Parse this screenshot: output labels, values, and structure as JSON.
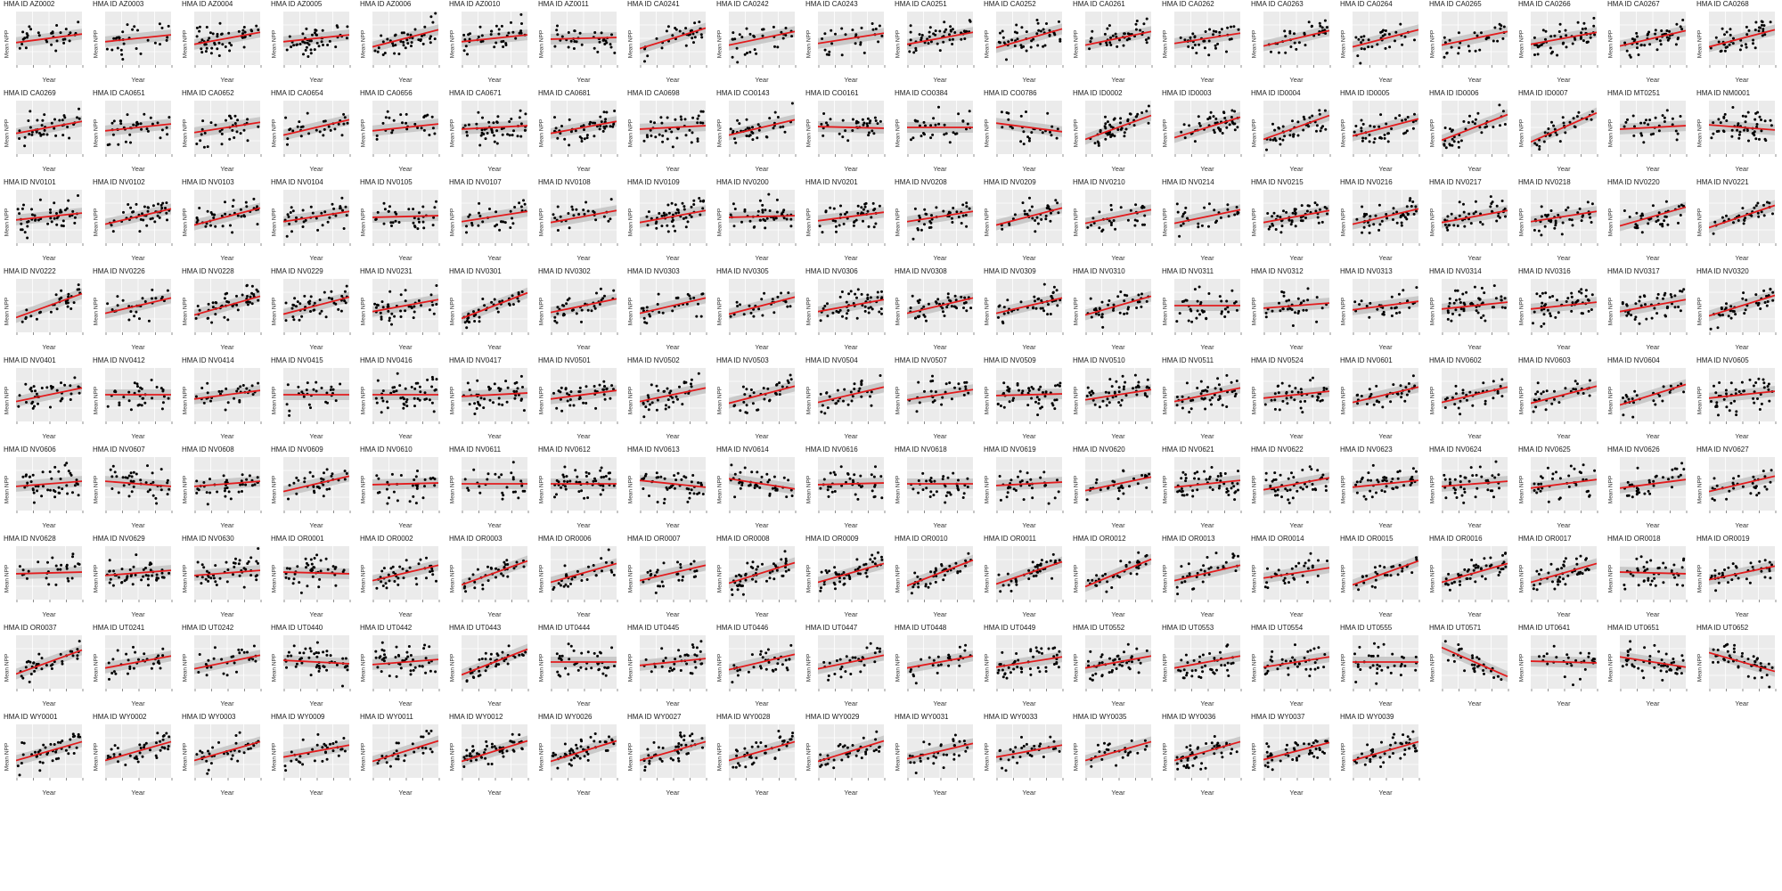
{
  "chart_data": {
    "type": "scatter",
    "layout": "small-multiples",
    "panel_title_prefix": "HMA ID",
    "xlabel": "Year",
    "ylabel": "Mean NPP",
    "point_color": "#000000",
    "trend_color": "#e31a1c",
    "ci_color": "#bdbdbd",
    "panel_background": "#ebebeb",
    "grid": true,
    "trend": "linear fit with confidence band",
    "panels": [
      {
        "id": "AZ0002",
        "slope": 0.25
      },
      {
        "id": "AZ0003",
        "slope": 0.2
      },
      {
        "id": "AZ0004",
        "slope": 0.35
      },
      {
        "id": "AZ0005",
        "slope": 0.2
      },
      {
        "id": "AZ0006",
        "slope": 0.5
      },
      {
        "id": "AZ0010",
        "slope": 0.2
      },
      {
        "id": "AZ0011",
        "slope": 0.05
      },
      {
        "id": "CA0241",
        "slope": 0.6
      },
      {
        "id": "CA0242",
        "slope": 0.4
      },
      {
        "id": "CA0243",
        "slope": 0.3
      },
      {
        "id": "CA0251",
        "slope": 0.35
      },
      {
        "id": "CA0252",
        "slope": 0.55
      },
      {
        "id": "CA0261",
        "slope": 0.4
      },
      {
        "id": "CA0262",
        "slope": 0.3
      },
      {
        "id": "CA0263",
        "slope": 0.45
      },
      {
        "id": "CA0264",
        "slope": 0.5
      },
      {
        "id": "CA0265",
        "slope": 0.4
      },
      {
        "id": "CA0266",
        "slope": 0.35
      },
      {
        "id": "CA0267",
        "slope": 0.45
      },
      {
        "id": "CA0268",
        "slope": 0.5
      },
      {
        "id": "CA0269",
        "slope": 0.35
      },
      {
        "id": "CA0651",
        "slope": 0.2
      },
      {
        "id": "CA0652",
        "slope": 0.3
      },
      {
        "id": "CA0654",
        "slope": 0.45
      },
      {
        "id": "CA0656",
        "slope": 0.2
      },
      {
        "id": "CA0671",
        "slope": 0.1
      },
      {
        "id": "CA0681",
        "slope": 0.35
      },
      {
        "id": "CA0698",
        "slope": 0.1
      },
      {
        "id": "CO0143",
        "slope": 0.45
      },
      {
        "id": "CO0161",
        "slope": -0.05
      },
      {
        "id": "CO0384",
        "slope": 0.0
      },
      {
        "id": "CO0786",
        "slope": -0.25
      },
      {
        "id": "ID0002",
        "slope": 0.7
      },
      {
        "id": "ID0003",
        "slope": 0.6
      },
      {
        "id": "ID0004",
        "slope": 0.7
      },
      {
        "id": "ID0005",
        "slope": 0.5
      },
      {
        "id": "ID0006",
        "slope": 0.75
      },
      {
        "id": "ID0007",
        "slope": 0.85
      },
      {
        "id": "MT0251",
        "slope": 0.1
      },
      {
        "id": "NM0001",
        "slope": -0.15
      },
      {
        "id": "NV0101",
        "slope": 0.2
      },
      {
        "id": "NV0102",
        "slope": 0.45
      },
      {
        "id": "NV0103",
        "slope": 0.5
      },
      {
        "id": "NV0104",
        "slope": 0.3
      },
      {
        "id": "NV0105",
        "slope": 0.05
      },
      {
        "id": "NV0107",
        "slope": 0.3
      },
      {
        "id": "NV0108",
        "slope": 0.35
      },
      {
        "id": "NV0109",
        "slope": 0.35
      },
      {
        "id": "NV0200",
        "slope": 0.05
      },
      {
        "id": "NV0201",
        "slope": 0.25
      },
      {
        "id": "NV0208",
        "slope": 0.3
      },
      {
        "id": "NV0209",
        "slope": 0.5
      },
      {
        "id": "NV0210",
        "slope": 0.4
      },
      {
        "id": "NV0214",
        "slope": 0.4
      },
      {
        "id": "NV0215",
        "slope": 0.35
      },
      {
        "id": "NV0216",
        "slope": 0.45
      },
      {
        "id": "NV0217",
        "slope": 0.35
      },
      {
        "id": "NV0218",
        "slope": 0.3
      },
      {
        "id": "NV0220",
        "slope": 0.55
      },
      {
        "id": "NV0221",
        "slope": 0.65
      },
      {
        "id": "NV0222",
        "slope": 0.7
      },
      {
        "id": "NV0226",
        "slope": 0.45
      },
      {
        "id": "NV0228",
        "slope": 0.55
      },
      {
        "id": "NV0229",
        "slope": 0.5
      },
      {
        "id": "NV0231",
        "slope": 0.35
      },
      {
        "id": "NV0301",
        "slope": 0.75
      },
      {
        "id": "NV0302",
        "slope": 0.4
      },
      {
        "id": "NV0303",
        "slope": 0.45
      },
      {
        "id": "NV0305",
        "slope": 0.5
      },
      {
        "id": "NV0306",
        "slope": 0.35
      },
      {
        "id": "NV0308",
        "slope": 0.45
      },
      {
        "id": "NV0309",
        "slope": 0.45
      },
      {
        "id": "NV0310",
        "slope": 0.55
      },
      {
        "id": "NV0311",
        "slope": 0.0
      },
      {
        "id": "NV0312",
        "slope": 0.15
      },
      {
        "id": "NV0313",
        "slope": 0.25
      },
      {
        "id": "NV0314",
        "slope": 0.2
      },
      {
        "id": "NV0316",
        "slope": 0.2
      },
      {
        "id": "NV0317",
        "slope": 0.35
      },
      {
        "id": "NV0320",
        "slope": 0.6
      },
      {
        "id": "NV0401",
        "slope": 0.4
      },
      {
        "id": "NV0412",
        "slope": 0.0
      },
      {
        "id": "NV0414",
        "slope": 0.25
      },
      {
        "id": "NV0415",
        "slope": 0.0
      },
      {
        "id": "NV0416",
        "slope": 0.0
      },
      {
        "id": "NV0417",
        "slope": 0.1
      },
      {
        "id": "NV0501",
        "slope": 0.25
      },
      {
        "id": "NV0502",
        "slope": 0.4
      },
      {
        "id": "NV0503",
        "slope": 0.5
      },
      {
        "id": "NV0504",
        "slope": 0.45
      },
      {
        "id": "NV0507",
        "slope": 0.3
      },
      {
        "id": "NV0509",
        "slope": 0.05
      },
      {
        "id": "NV0510",
        "slope": 0.3
      },
      {
        "id": "NV0511",
        "slope": 0.4
      },
      {
        "id": "NV0524",
        "slope": 0.2
      },
      {
        "id": "NV0601",
        "slope": 0.45
      },
      {
        "id": "NV0602",
        "slope": 0.45
      },
      {
        "id": "NV0603",
        "slope": 0.5
      },
      {
        "id": "NV0604",
        "slope": 0.6
      },
      {
        "id": "NV0605",
        "slope": 0.2
      },
      {
        "id": "NV0606",
        "slope": 0.15
      },
      {
        "id": "NV0607",
        "slope": -0.15
      },
      {
        "id": "NV0608",
        "slope": 0.15
      },
      {
        "id": "NV0609",
        "slope": 0.45
      },
      {
        "id": "NV0610",
        "slope": 0.05
      },
      {
        "id": "NV0611",
        "slope": 0.0
      },
      {
        "id": "NV0612",
        "slope": 0.0
      },
      {
        "id": "NV0613",
        "slope": -0.2
      },
      {
        "id": "NV0614",
        "slope": -0.3
      },
      {
        "id": "NV0616",
        "slope": 0.05
      },
      {
        "id": "NV0618",
        "slope": 0.0
      },
      {
        "id": "NV0619",
        "slope": 0.1
      },
      {
        "id": "NV0620",
        "slope": 0.4
      },
      {
        "id": "NV0621",
        "slope": 0.2
      },
      {
        "id": "NV0622",
        "slope": 0.35
      },
      {
        "id": "NV0623",
        "slope": 0.2
      },
      {
        "id": "NV0624",
        "slope": 0.15
      },
      {
        "id": "NV0625",
        "slope": 0.25
      },
      {
        "id": "NV0626",
        "slope": 0.25
      },
      {
        "id": "NV0627",
        "slope": 0.45
      },
      {
        "id": "NV0628",
        "slope": 0.05
      },
      {
        "id": "NV0629",
        "slope": 0.15
      },
      {
        "id": "NV0630",
        "slope": 0.15
      },
      {
        "id": "OR0001",
        "slope": -0.05
      },
      {
        "id": "OR0002",
        "slope": 0.45
      },
      {
        "id": "OR0003",
        "slope": 0.7
      },
      {
        "id": "OR0006",
        "slope": 0.55
      },
      {
        "id": "OR0007",
        "slope": 0.45
      },
      {
        "id": "OR0008",
        "slope": 0.6
      },
      {
        "id": "OR0009",
        "slope": 0.55
      },
      {
        "id": "OR0010",
        "slope": 0.75
      },
      {
        "id": "OR0011",
        "slope": 0.65
      },
      {
        "id": "OR0012",
        "slope": 0.8
      },
      {
        "id": "OR0013",
        "slope": 0.45
      },
      {
        "id": "OR0014",
        "slope": 0.3
      },
      {
        "id": "OR0015",
        "slope": 0.7
      },
      {
        "id": "OR0016",
        "slope": 0.55
      },
      {
        "id": "OR0017",
        "slope": 0.55
      },
      {
        "id": "OR0018",
        "slope": -0.05
      },
      {
        "id": "OR0019",
        "slope": 0.4
      },
      {
        "id": "OR0037",
        "slope": 0.7
      },
      {
        "id": "UT0241",
        "slope": 0.35
      },
      {
        "id": "UT0242",
        "slope": 0.4
      },
      {
        "id": "UT0440",
        "slope": -0.1
      },
      {
        "id": "UT0442",
        "slope": 0.15
      },
      {
        "id": "UT0443",
        "slope": 0.75
      },
      {
        "id": "UT0444",
        "slope": 0.0
      },
      {
        "id": "UT0445",
        "slope": 0.2
      },
      {
        "id": "UT0446",
        "slope": 0.45
      },
      {
        "id": "UT0447",
        "slope": 0.4
      },
      {
        "id": "UT0448",
        "slope": 0.35
      },
      {
        "id": "UT0449",
        "slope": 0.3
      },
      {
        "id": "UT0552",
        "slope": 0.35
      },
      {
        "id": "UT0553",
        "slope": 0.35
      },
      {
        "id": "UT0554",
        "slope": 0.3
      },
      {
        "id": "UT0555",
        "slope": 0.0
      },
      {
        "id": "UT0571",
        "slope": -0.85
      },
      {
        "id": "UT0641",
        "slope": -0.05
      },
      {
        "id": "UT0651",
        "slope": -0.3
      },
      {
        "id": "UT0652",
        "slope": -0.55
      },
      {
        "id": "WY0001",
        "slope": 0.55
      },
      {
        "id": "WY0002",
        "slope": 0.55
      },
      {
        "id": "WY0003",
        "slope": 0.55
      },
      {
        "id": "WY0009",
        "slope": 0.35
      },
      {
        "id": "WY0011",
        "slope": 0.6
      },
      {
        "id": "WY0012",
        "slope": 0.6
      },
      {
        "id": "WY0026",
        "slope": 0.6
      },
      {
        "id": "WY0027",
        "slope": 0.55
      },
      {
        "id": "WY0028",
        "slope": 0.55
      },
      {
        "id": "WY0029",
        "slope": 0.6
      },
      {
        "id": "WY0031",
        "slope": 0.45
      },
      {
        "id": "WY0033",
        "slope": 0.35
      },
      {
        "id": "WY0035",
        "slope": 0.55
      },
      {
        "id": "WY0036",
        "slope": 0.55
      },
      {
        "id": "WY0037",
        "slope": 0.5
      },
      {
        "id": "WY0039",
        "slope": 0.55
      }
    ]
  }
}
